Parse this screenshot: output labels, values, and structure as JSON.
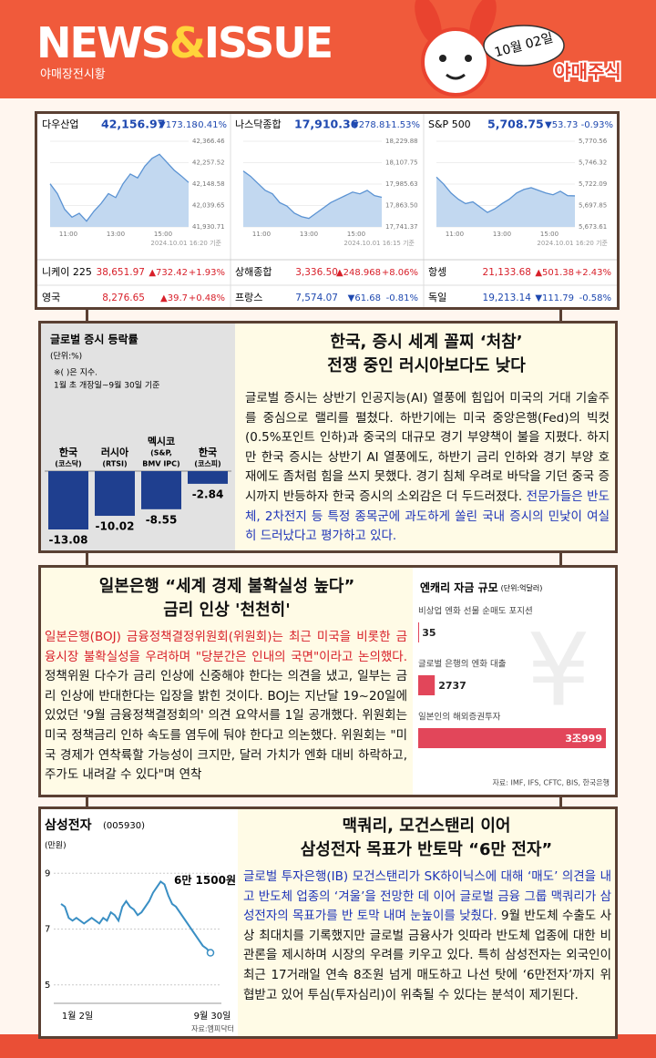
{
  "header": {
    "title": [
      "NEWS",
      "&",
      "ISSUE"
    ],
    "subtitle": "야매장전시황",
    "date": "10월 02일",
    "brand": "야매주식"
  },
  "markets": {
    "indices": [
      {
        "name": "다우산업",
        "value": "42,156.97",
        "change": "▼173.18",
        "pct": "-0.41%",
        "timestamp": "2024.10.01 16:20 기준",
        "xlabels": [
          "11:00",
          "13:00",
          "15:00"
        ],
        "ylim": [
          41930.71,
          42366.46
        ],
        "yticks": [
          {
            "value": 42366.46,
            "label": "42,366.46"
          },
          {
            "value": 42257.52,
            "label": "42,257.52"
          },
          {
            "value": 42148.58,
            "label": "42,148.58"
          },
          {
            "value": 42039.65,
            "label": "42,039.65"
          },
          {
            "value": 41930.71,
            "label": "41,930.71"
          }
        ],
        "values": [
          42150,
          42100,
          42020,
          41980,
          42000,
          41960,
          42010,
          42050,
          42100,
          42080,
          42150,
          42200,
          42180,
          42240,
          42280,
          42300,
          42260,
          42220,
          42190,
          42157
        ]
      },
      {
        "name": "나스닥종합",
        "value": "17,910.36",
        "change": "▼278.81",
        "pct": "-1.53%",
        "timestamp": "2024.10.01 16:15 기준",
        "xlabels": [
          "11:00",
          "13:00",
          "15:00"
        ],
        "ylim": [
          17741.37,
          18229.88
        ],
        "yticks": [
          {
            "value": 18229.88,
            "label": "18,229.88"
          },
          {
            "value": 18107.75,
            "label": "18,107.75"
          },
          {
            "value": 17985.63,
            "label": "17,985.63"
          },
          {
            "value": 17863.5,
            "label": "17,863.50"
          },
          {
            "value": 17741.37,
            "label": "17,741.37"
          }
        ],
        "values": [
          18060,
          18030,
          17990,
          17950,
          17930,
          17880,
          17860,
          17820,
          17800,
          17790,
          17820,
          17850,
          17880,
          17900,
          17920,
          17940,
          17930,
          17950,
          17920,
          17910
        ]
      },
      {
        "name": "S&P 500",
        "value": "5,708.75",
        "change": "▼53.73",
        "pct": "-0.93%",
        "timestamp": "2024.10.01 16:20 기준",
        "xlabels": [
          "11:00",
          "13:00",
          "15:00"
        ],
        "ylim": [
          5673.61,
          5770.56
        ],
        "yticks": [
          {
            "value": 5770.56,
            "label": "5,770.56"
          },
          {
            "value": 5746.32,
            "label": "5,746.32"
          },
          {
            "value": 5722.09,
            "label": "5,722.09"
          },
          {
            "value": 5697.85,
            "label": "5,697.85"
          },
          {
            "value": 5673.61,
            "label": "5,673.61"
          }
        ],
        "values": [
          5730,
          5722,
          5712,
          5705,
          5700,
          5702,
          5696,
          5690,
          5694,
          5700,
          5705,
          5712,
          5716,
          5718,
          5715,
          5712,
          5710,
          5714,
          5709,
          5708.75
        ]
      }
    ],
    "others": [
      {
        "name": "니케이 225",
        "value": "38,651.97",
        "change": "▲732.42",
        "pct": "+1.93%"
      },
      {
        "name": "상해종합",
        "value": "3,336.50",
        "change": "▲248.968",
        "pct": "+8.06%"
      },
      {
        "name": "항셍",
        "value": "21,133.68",
        "change": "▲501.38",
        "pct": "+2.43%"
      },
      {
        "name": "영국",
        "value": "8,276.65",
        "change": "▲39.7",
        "pct": "+0.48%"
      },
      {
        "name": "프랑스",
        "value": "7,574.07",
        "change": "▼61.68",
        "pct": "-0.81%"
      },
      {
        "name": "독일",
        "value": "19,213.14",
        "change": "▼111.79",
        "pct": "-0.58%"
      }
    ]
  },
  "articles": [
    {
      "headline": [
        "한국, 증시 세계 꼴찌 ‘처참’",
        "전쟁 중인 러시아보다도 낮다"
      ],
      "body": "글로벌 증시는 상반기 인공지능(AI) 열풍에 힘입어 미국의 거대 기술주를 중심으로 랠리를 펼쳤다. 하반기에는 미국 중앙은행(Fed)의 빅컷(0.5%포인트 인하)과 중국의 대규모 경기 부양책이 불을 지폈다. 하지만 한국 증시는 상반기 AI 열풍에도, 하반기 금리 인하와 경기 부양 호재에도 좀처럼 힘을 쓰지 못했다. 경기 침체 우려로 바닥을 기던 중국 증시까지 반등하자 한국 증시의 소외감은 더 두드러졌다. ",
      "highlight": "전문가들은 반도체, 2차전지 등 특정 종목군에 과도하게 쏠린 국내 증시의 민낯이 여실히 드러났다고 평가하고 있다.",
      "chart": {
        "title": "글로벌 증시 등락률",
        "unit": "(단위:%)",
        "notes": [
          "※( )은 지수.",
          "1월 초 개장일~9월 30일 기준"
        ],
        "categories": [
          [
            "한국",
            "(코스닥)"
          ],
          [
            "러시아",
            "(RTSI)"
          ],
          [
            "멕시코",
            "(S&P,",
            "BMV IPC)"
          ],
          [
            "한국",
            "(코스피)"
          ]
        ],
        "values": [
          -13.08,
          -10.02,
          -8.55,
          -2.84
        ],
        "color": "#1f3f8f"
      }
    },
    {
      "headline": [
        "일본은행 “세계 경제 불확실성 높다”",
        "금리 인상 '천천히'"
      ],
      "highlight": "일본은행(BOJ) 금융정책결정위원회(위원회)는 최근 미국을 비롯한 금융시장 불확실성을 우려하며 \"당분간은 인내의 국면\"이라고 논의했다.",
      "body": " 정책위원 다수가 금리 인상에 신중해야 한다는 의견을 냈고, 일부는 금리 인상에 반대한다는 입장을 밝힌 것이다. BOJ는 지난달 19~20일에 있었던 '9월 금융정책결정회의' 의견 요약서를 1일 공개했다. 위원회는 미국 정책금리 인하 속도를 염두에 둬야 한다고 의논했다. 위원회는 \"미국 경제가 연착륙할 가능성이 크지만, 달러 가치가 엔화 대비 하락하고, 주가도 내려갈 수 있다\"며 연착",
      "chart": {
        "title": "엔캐리 자금 규모",
        "unit": "(단위:억달러)",
        "categories": [
          "비상업 엔화 선물 순매도 포지션",
          "글로벌 은행의 엔화 대출",
          "일본인의 해외증권투자"
        ],
        "values": [
          35,
          2737,
          30999
        ],
        "value_labels": [
          "35",
          "2737",
          "3조999"
        ],
        "color": "#e2465a",
        "source": "자료: IMF, IFS, CFTC, BIS, 한국은행"
      }
    },
    {
      "headline": [
        "맥쿼리, 모건스탠리 이어",
        "삼성전자 목표가 반토막 “6만 전자”"
      ],
      "highlight": "글로벌 투자은행(IB) 모건스탠리가 SK하이닉스에 대해 ‘매도’ 의견을 내고 반도체 업종의 ‘겨울’을 전망한 데 이어 글로벌 금융 그룹 맥쿼리가 삼성전자의 목표가를 반 토막 내며 눈높이를 낮췄다.",
      "body": " 9월 반도체 수출도 사상 최대치를 기록했지만 글로벌 금융사가 잇따라 반도체 업종에 대한 비관론을 제시하며 시장의 우려를 키우고 있다. 특히 삼성전자는 외국인이 최근 17거래일 연속 8조원 넘게 매도하고 나선 탓에 ‘6만전자’까지 위협받고 있어 투심(투자심리)이 위축될 수 있다는 분석이 제기된다.",
      "chart": {
        "title": "삼성전자",
        "code": "(005930)",
        "unit": "(만원)",
        "annotation": "6만 1500원",
        "xlabels": [
          "1월 2일",
          "9월 30일"
        ],
        "ylim": [
          4.6,
          9.4
        ],
        "yticks": [
          9,
          7,
          5
        ],
        "color": "#3a8fc4",
        "source": "자료:엠피닥터",
        "values": [
          7.9,
          7.8,
          7.4,
          7.3,
          7.4,
          7.3,
          7.2,
          7.3,
          7.4,
          7.3,
          7.2,
          7.4,
          7.3,
          7.6,
          7.5,
          7.3,
          7.8,
          8.0,
          7.8,
          7.7,
          7.5,
          7.6,
          7.8,
          8.0,
          8.3,
          8.5,
          8.7,
          8.6,
          8.2,
          7.9,
          7.8,
          7.6,
          7.4,
          7.2,
          7.0,
          6.8,
          6.6,
          6.4,
          6.3,
          6.15
        ]
      }
    }
  ]
}
